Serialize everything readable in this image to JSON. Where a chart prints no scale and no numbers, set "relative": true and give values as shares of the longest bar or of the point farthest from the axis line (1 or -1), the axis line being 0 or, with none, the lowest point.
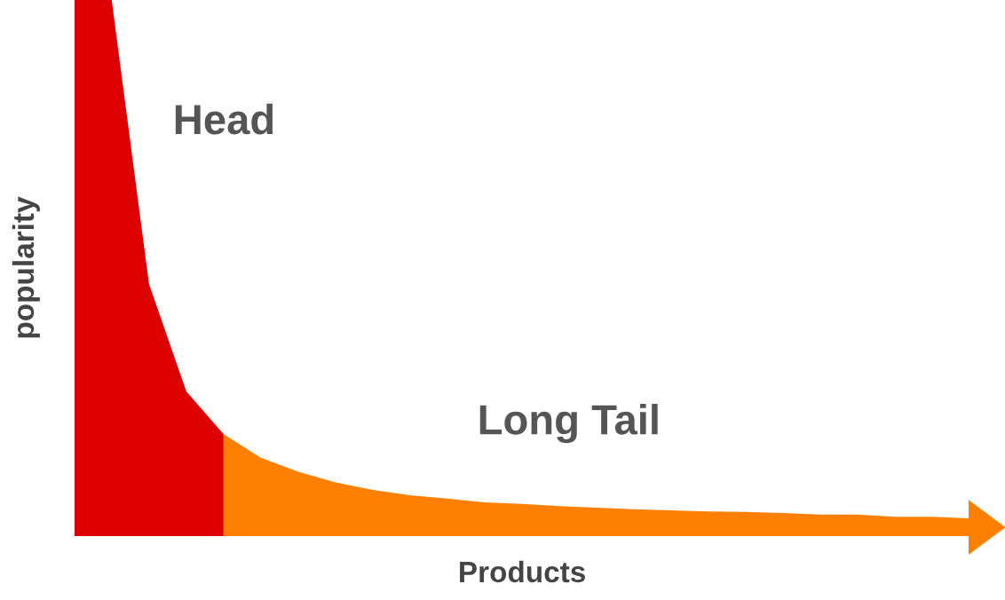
{
  "chart_data": {
    "type": "area",
    "relative": true,
    "xlabel": "Products",
    "ylabel": "popularity",
    "legend": false,
    "annotations": [
      "Head",
      "Long Tail"
    ],
    "categories": [
      null,
      null,
      null,
      null,
      null,
      null,
      null,
      null,
      null,
      null,
      null,
      null,
      null,
      null,
      null,
      null,
      null,
      null,
      null,
      null,
      null,
      null,
      null,
      null,
      null
    ],
    "series": [
      {
        "color": "#dd0000",
        "values": [
          1.0,
          1.0,
          0.47,
          0.27,
          0.19,
          null,
          null,
          null,
          null,
          null,
          null,
          null,
          null,
          null,
          null,
          null,
          null,
          null,
          null,
          null,
          null,
          null,
          null,
          null,
          null
        ]
      },
      {
        "color": "#ff8000",
        "values": [
          null,
          null,
          null,
          null,
          0.19,
          0.146,
          0.12,
          0.1,
          0.086,
          0.076,
          0.07,
          0.063,
          0.06,
          0.056,
          0.053,
          0.05,
          0.048,
          0.046,
          0.045,
          0.043,
          0.04,
          0.04,
          0.036,
          0.036,
          0.033
        ]
      }
    ]
  }
}
